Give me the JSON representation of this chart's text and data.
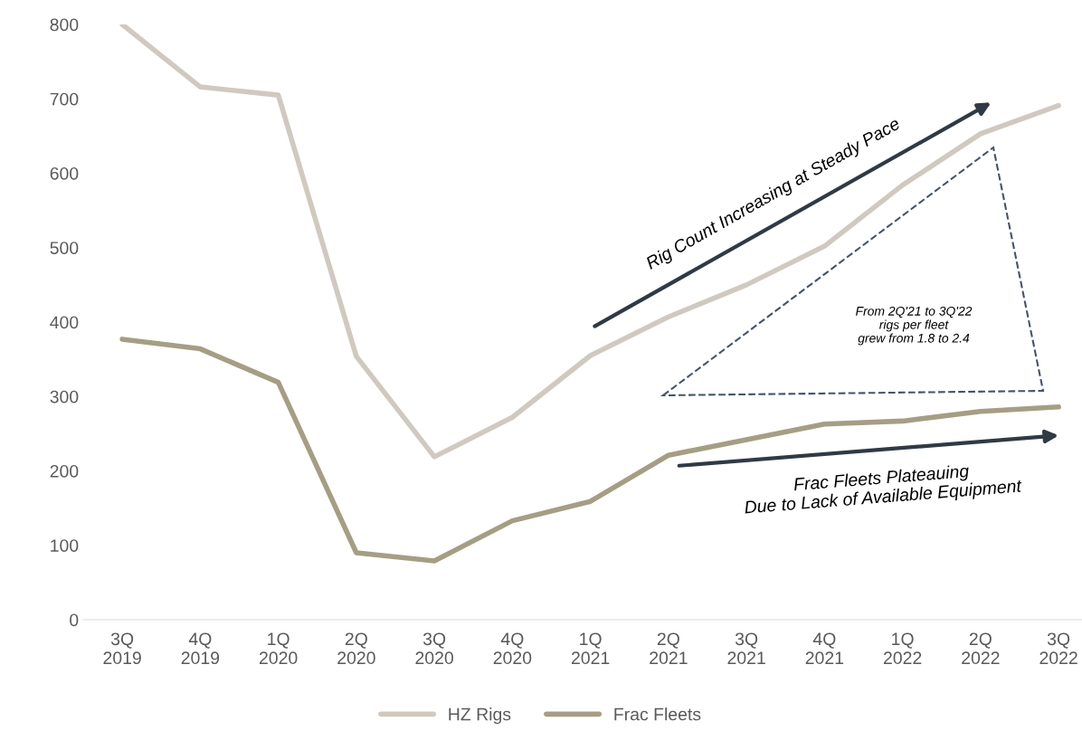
{
  "chart_data": {
    "type": "line",
    "categories": [
      "3Q\n2019",
      "4Q\n2019",
      "1Q\n2020",
      "2Q\n2020",
      "3Q\n2020",
      "4Q\n2020",
      "1Q\n2021",
      "2Q\n2021",
      "3Q\n2021",
      "4Q\n2021",
      "1Q\n2022",
      "2Q\n2022",
      "3Q\n2022"
    ],
    "series": [
      {
        "name": "HZ Rigs",
        "color": "#d0c9c0",
        "values": [
          800,
          716,
          705,
          354,
          219,
          272,
          355,
          407,
          450,
          502,
          584,
          653,
          691
        ]
      },
      {
        "name": "Frac Fleets",
        "color": "#a59e84",
        "values": [
          377,
          364,
          319,
          90,
          79,
          133,
          159,
          221,
          242,
          263,
          267,
          280,
          286
        ]
      }
    ],
    "ylim": [
      0,
      800
    ],
    "yticks": [
      0,
      100,
      200,
      300,
      400,
      500,
      600,
      700,
      800
    ],
    "grid": false,
    "legend": "bottom",
    "marker": "none",
    "line_style": "solid",
    "annotations": [
      "Rig Count Increasing at Steady Pace",
      "From 2Q'21 to 3Q'22\nrigs per fleet\ngrew from 1.8 to 2.4",
      "Frac Fleets Plateauing\nDue to Lack of Available Equipment"
    ]
  }
}
